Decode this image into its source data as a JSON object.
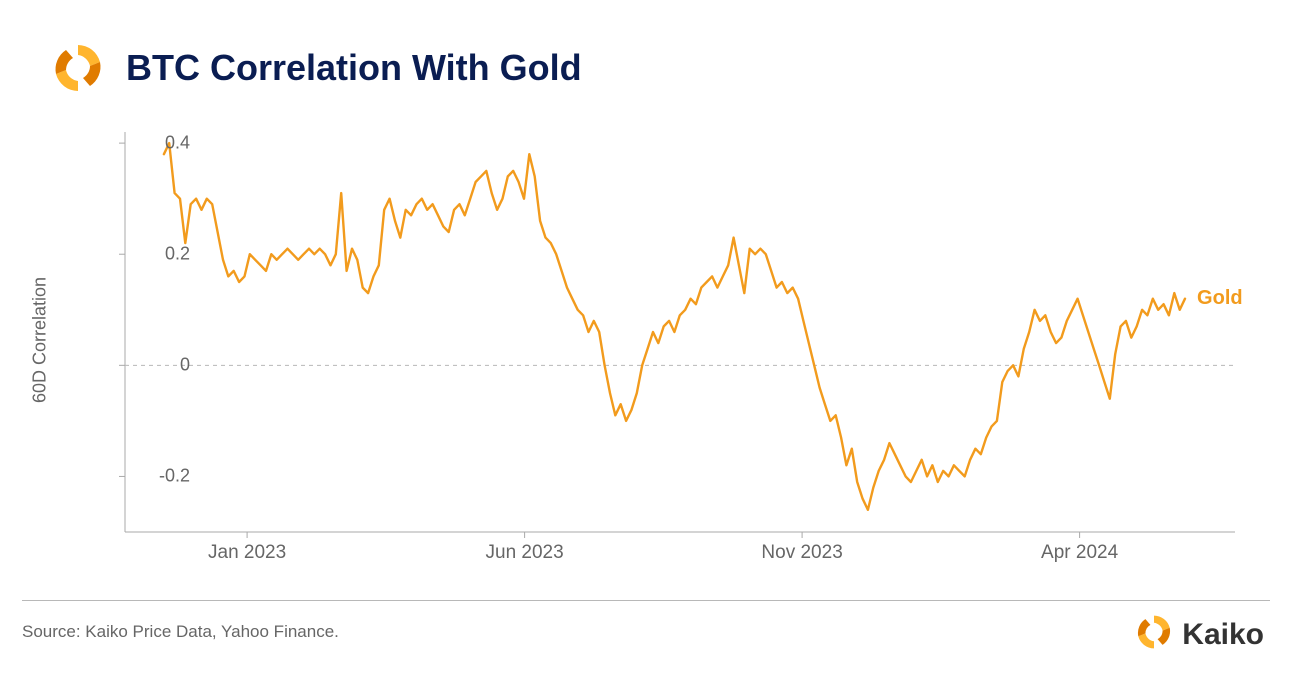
{
  "header": {
    "title": "BTC Correlation With Gold"
  },
  "chart": {
    "type": "line",
    "ylabel": "60D Correlation",
    "ylim": [
      -0.3,
      0.42
    ],
    "ytick_values": [
      -0.2,
      0,
      0.2,
      0.4
    ],
    "ytick_labels": [
      "-0.2",
      "0",
      "0.2",
      "0.4"
    ],
    "zero_line_y": 0,
    "zero_line_color": "#b8b8b8",
    "zero_line_dash": "4,4",
    "xtick_positions": [
      0.11,
      0.36,
      0.61,
      0.86
    ],
    "xtick_labels": [
      "Jan 2023",
      "Jun 2023",
      "Nov 2023",
      "Apr 2024"
    ],
    "axis": {
      "bottom_color": "#a9a9a9",
      "left_color": "#a9a9a9",
      "tick_len": 6
    },
    "series": {
      "label": "Gold",
      "label_color": "#f29b1d",
      "label_fontsize": 20,
      "line_color": "#f29b1d",
      "line_width": 2.4,
      "x_start": 0.035,
      "x_end": 0.955,
      "y_values": [
        0.38,
        0.4,
        0.31,
        0.3,
        0.22,
        0.29,
        0.3,
        0.28,
        0.3,
        0.29,
        0.24,
        0.19,
        0.16,
        0.17,
        0.15,
        0.16,
        0.2,
        0.19,
        0.18,
        0.17,
        0.2,
        0.19,
        0.2,
        0.21,
        0.2,
        0.19,
        0.2,
        0.21,
        0.2,
        0.21,
        0.2,
        0.18,
        0.2,
        0.31,
        0.17,
        0.21,
        0.19,
        0.14,
        0.13,
        0.16,
        0.18,
        0.28,
        0.3,
        0.26,
        0.23,
        0.28,
        0.27,
        0.29,
        0.3,
        0.28,
        0.29,
        0.27,
        0.25,
        0.24,
        0.28,
        0.29,
        0.27,
        0.3,
        0.33,
        0.34,
        0.35,
        0.31,
        0.28,
        0.3,
        0.34,
        0.35,
        0.33,
        0.3,
        0.38,
        0.34,
        0.26,
        0.23,
        0.22,
        0.2,
        0.17,
        0.14,
        0.12,
        0.1,
        0.09,
        0.06,
        0.08,
        0.06,
        0.0,
        -0.05,
        -0.09,
        -0.07,
        -0.1,
        -0.08,
        -0.05,
        0.0,
        0.03,
        0.06,
        0.04,
        0.07,
        0.08,
        0.06,
        0.09,
        0.1,
        0.12,
        0.11,
        0.14,
        0.15,
        0.16,
        0.14,
        0.16,
        0.18,
        0.23,
        0.18,
        0.13,
        0.21,
        0.2,
        0.21,
        0.2,
        0.17,
        0.14,
        0.15,
        0.13,
        0.14,
        0.12,
        0.08,
        0.04,
        0.0,
        -0.04,
        -0.07,
        -0.1,
        -0.09,
        -0.13,
        -0.18,
        -0.15,
        -0.21,
        -0.24,
        -0.26,
        -0.22,
        -0.19,
        -0.17,
        -0.14,
        -0.16,
        -0.18,
        -0.2,
        -0.21,
        -0.19,
        -0.17,
        -0.2,
        -0.18,
        -0.21,
        -0.19,
        -0.2,
        -0.18,
        -0.19,
        -0.2,
        -0.17,
        -0.15,
        -0.16,
        -0.13,
        -0.11,
        -0.1,
        -0.03,
        -0.01,
        0.0,
        -0.02,
        0.03,
        0.06,
        0.1,
        0.08,
        0.09,
        0.06,
        0.04,
        0.05,
        0.08,
        0.1,
        0.12,
        0.09,
        0.06,
        0.03,
        0.0,
        -0.03,
        -0.06,
        0.02,
        0.07,
        0.08,
        0.05,
        0.07,
        0.1,
        0.09,
        0.12,
        0.1,
        0.11,
        0.09,
        0.13,
        0.1,
        0.12
      ]
    },
    "background_color": "#ffffff",
    "tick_label_color": "#666666",
    "tick_label_fontsize": 18
  },
  "footer": {
    "source": "Source: Kaiko Price Data, Yahoo Finance.",
    "brand": "Kaiko"
  },
  "logo": {
    "colors": {
      "dark": "#e07b00",
      "light": "#ffb52e"
    }
  }
}
